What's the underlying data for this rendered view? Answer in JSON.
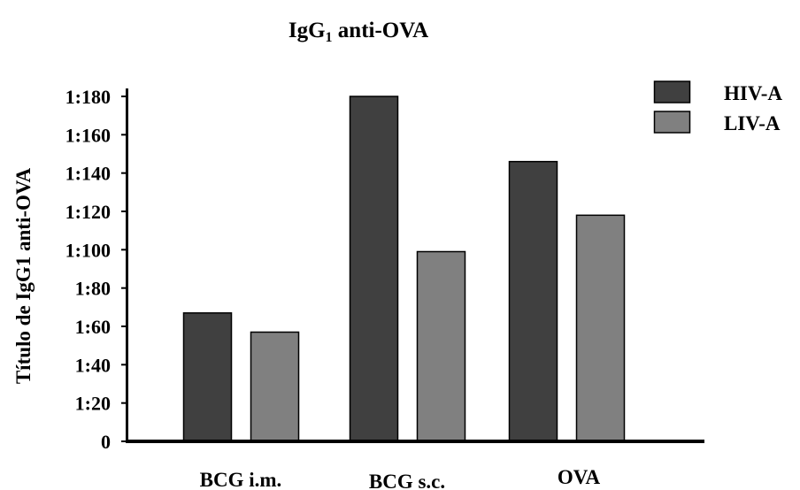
{
  "chart_data": {
    "type": "bar",
    "title_main": "IgG",
    "title_sub": "1",
    "title_rest": " anti-OVA",
    "ylabel": "Título de IgG1 anti-OVA",
    "xlabel": "",
    "categories": [
      "BCG i.m.",
      "BCG s.c.",
      "OVA"
    ],
    "series": [
      {
        "name": "HIV-A",
        "color": "#404040",
        "values": [
          67,
          180,
          146
        ]
      },
      {
        "name": "LIV-A",
        "color": "#808080",
        "values": [
          57,
          99,
          118
        ]
      }
    ],
    "yticks": [
      0,
      20,
      40,
      60,
      80,
      100,
      120,
      140,
      160,
      180
    ],
    "ytick_labels": [
      "0",
      "1:20",
      "1:40",
      "1:60",
      "1:80",
      "1:100",
      "1:120",
      "1:140",
      "1:160",
      "1:180"
    ],
    "ylim": [
      0,
      180
    ],
    "grid": false,
    "legend_position": "top-right"
  }
}
